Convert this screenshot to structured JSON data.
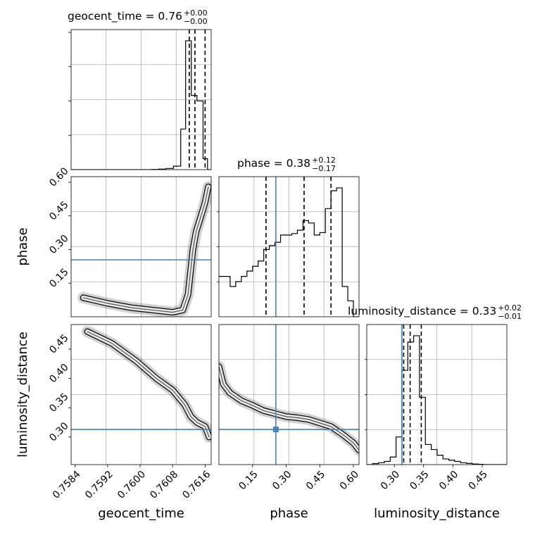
{
  "figure": {
    "parameters": [
      "geocent_time",
      "phase",
      "luminosity_distance"
    ],
    "truth_color": "#4682b4",
    "hist_color": "#000000",
    "density_color": "#000000"
  },
  "chart_data": {
    "type": "corner",
    "grid": true,
    "titles": [
      {
        "param": "geocent_time",
        "base": "geocent_time = 0.76",
        "sup": "+0.00",
        "sub": "−0.00"
      },
      {
        "param": "phase",
        "base": "phase = 0.38",
        "sup": "+0.12",
        "sub": "−0.17"
      },
      {
        "param": "luminosity_distance",
        "base": "luminosity_distance = 0.33",
        "sup": "+0.02",
        "sub": "−0.01"
      }
    ],
    "axes": {
      "geocent_time": {
        "label": "geocent_time",
        "range": [
          0.7583,
          0.76175
        ],
        "ticks": [
          "0.7584",
          "0.7592",
          "0.7600",
          "0.7608",
          "0.7616"
        ]
      },
      "phase": {
        "label": "phase",
        "range": [
          0.0,
          0.625
        ],
        "ticks": [
          "0.15",
          "0.30",
          "0.45",
          "0.60"
        ]
      },
      "luminosity_distance": {
        "label": "luminosity_distance",
        "range": [
          0.253,
          0.492
        ],
        "ticks": [
          "0.30",
          "0.35",
          "0.40",
          "0.45"
        ]
      }
    },
    "truth": {
      "phase": 0.254,
      "luminosity_distance": 0.313
    },
    "diagonal": [
      {
        "param": "geocent_time",
        "quantiles": [
          0.76121,
          0.76135,
          0.7616
        ],
        "edges": [
          0.7583,
          0.75848,
          0.75866,
          0.75884,
          0.75902,
          0.7592,
          0.75938,
          0.75956,
          0.75974,
          0.75992,
          0.7601,
          0.76028,
          0.76046,
          0.76064,
          0.76082,
          0.761,
          0.76112,
          0.76126,
          0.7614,
          0.76155,
          0.76166,
          0.76175
        ],
        "counts": [
          0,
          0,
          0,
          0,
          0,
          0,
          0,
          0,
          0,
          0,
          0,
          0.3,
          0.7,
          1.5,
          4.5,
          52,
          165,
          95,
          88,
          14,
          0
        ]
      },
      {
        "param": "phase",
        "quantiles": [
          0.21,
          0.38,
          0.5
        ],
        "edges": [
          0.0,
          0.025,
          0.05,
          0.075,
          0.1,
          0.125,
          0.15,
          0.175,
          0.2,
          0.225,
          0.25,
          0.275,
          0.3,
          0.325,
          0.35,
          0.375,
          0.4,
          0.425,
          0.45,
          0.475,
          0.5,
          0.525,
          0.55,
          0.575,
          0.6,
          0.625
        ],
        "counts": [
          84,
          84,
          63,
          73,
          84,
          95,
          105,
          116,
          140,
          148,
          155,
          170,
          170,
          173,
          180,
          200,
          195,
          170,
          175,
          225,
          262,
          268,
          63,
          33,
          0
        ]
      },
      {
        "param": "luminosity_distance",
        "quantiles": [
          0.316,
          0.327,
          0.346
        ],
        "edges": [
          0.253,
          0.263,
          0.273,
          0.283,
          0.293,
          0.303,
          0.313,
          0.323,
          0.333,
          0.343,
          0.353,
          0.363,
          0.373,
          0.383,
          0.393,
          0.403,
          0.413,
          0.423,
          0.433,
          0.443,
          0.453,
          0.463,
          0.473,
          0.483,
          0.492
        ],
        "counts": [
          0,
          1.5,
          3,
          5,
          12,
          44,
          150,
          195,
          205,
          107,
          32,
          24,
          15,
          9,
          7,
          5,
          3,
          2,
          1,
          0.5,
          0,
          0,
          0,
          0
        ]
      }
    ],
    "pairs": [
      {
        "x": "geocent_time",
        "y": "phase",
        "ridge": [
          [
            0.7586,
            0.085
          ],
          [
            0.7592,
            0.06
          ],
          [
            0.7598,
            0.04
          ],
          [
            0.7603,
            0.03
          ],
          [
            0.7608,
            0.02
          ],
          [
            0.76105,
            0.03
          ],
          [
            0.76118,
            0.1
          ],
          [
            0.76124,
            0.2
          ],
          [
            0.7613,
            0.3
          ],
          [
            0.76138,
            0.38
          ],
          [
            0.7615,
            0.45
          ],
          [
            0.7616,
            0.51
          ],
          [
            0.76168,
            0.58
          ]
        ]
      },
      {
        "x": "geocent_time",
        "y": "luminosity_distance",
        "ridge": [
          [
            0.7587,
            0.48
          ],
          [
            0.7593,
            0.46
          ],
          [
            0.7599,
            0.43
          ],
          [
            0.7604,
            0.4
          ],
          [
            0.7608,
            0.38
          ],
          [
            0.7611,
            0.355
          ],
          [
            0.76125,
            0.335
          ],
          [
            0.7614,
            0.325
          ],
          [
            0.7616,
            0.318
          ],
          [
            0.7617,
            0.3
          ]
        ]
      },
      {
        "x": "phase",
        "y": "luminosity_distance",
        "ridge": [
          [
            0.0,
            0.42
          ],
          [
            0.02,
            0.39
          ],
          [
            0.05,
            0.375
          ],
          [
            0.1,
            0.362
          ],
          [
            0.15,
            0.354
          ],
          [
            0.2,
            0.345
          ],
          [
            0.25,
            0.34
          ],
          [
            0.3,
            0.335
          ],
          [
            0.35,
            0.333
          ],
          [
            0.4,
            0.33
          ],
          [
            0.45,
            0.324
          ],
          [
            0.5,
            0.318
          ],
          [
            0.55,
            0.305
          ],
          [
            0.6,
            0.29
          ],
          [
            0.625,
            0.278
          ]
        ]
      }
    ]
  }
}
